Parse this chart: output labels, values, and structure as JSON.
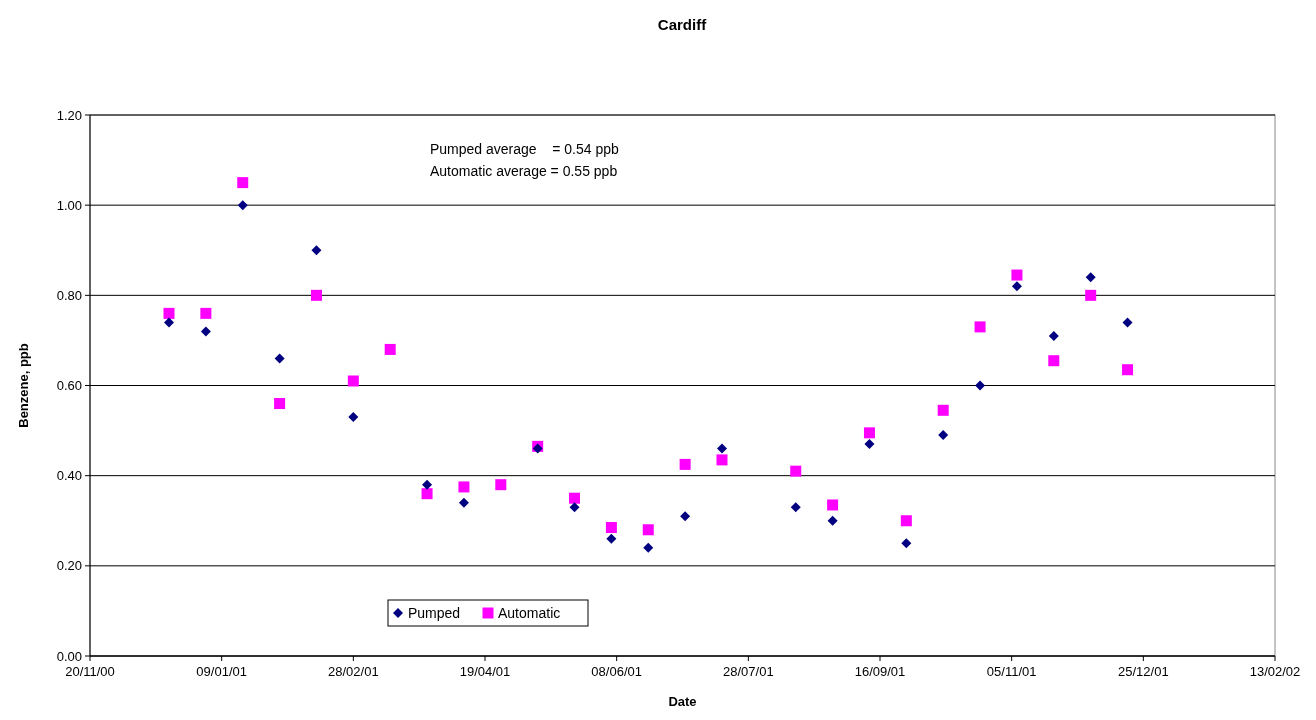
{
  "chart_data": {
    "type": "scatter",
    "title": "Cardiff",
    "xlabel": "Date",
    "ylabel": "Benzene, ppb",
    "annotations": [
      "Pumped average    = 0.54 ppb",
      "Automatic average = 0.55 ppb"
    ],
    "x": [
      "2000-12-20",
      "2001-01-03",
      "2001-01-17",
      "2001-01-31",
      "2001-02-14",
      "2001-02-28",
      "2001-03-14",
      "2001-03-28",
      "2001-04-11",
      "2001-04-25",
      "2001-05-09",
      "2001-05-23",
      "2001-06-06",
      "2001-06-20",
      "2001-07-04",
      "2001-07-18",
      "2001-08-15",
      "2001-08-29",
      "2001-09-12",
      "2001-09-26",
      "2001-10-10",
      "2001-10-24",
      "2001-11-07",
      "2001-11-21",
      "2001-12-05",
      "2001-12-19"
    ],
    "series": [
      {
        "name": "Pumped",
        "color": "#000080",
        "marker": "diamond",
        "values": [
          0.74,
          0.72,
          1.0,
          0.66,
          0.9,
          0.53,
          null,
          0.38,
          0.34,
          null,
          0.46,
          0.33,
          0.26,
          0.24,
          0.31,
          0.46,
          0.33,
          0.3,
          0.47,
          0.25,
          0.49,
          0.6,
          0.82,
          0.71,
          0.84,
          0.74
        ]
      },
      {
        "name": "Automatic",
        "color": "#ff00ff",
        "marker": "square",
        "values": [
          0.76,
          0.76,
          1.05,
          0.56,
          0.8,
          0.61,
          0.68,
          0.36,
          0.375,
          0.38,
          0.465,
          0.35,
          0.285,
          0.28,
          0.425,
          0.435,
          0.41,
          0.335,
          0.495,
          0.3,
          0.545,
          0.73,
          0.845,
          0.655,
          0.8,
          0.635
        ]
      }
    ],
    "xlim": [
      "2000-11-20",
      "2002-02-13"
    ],
    "xticks": [
      {
        "value": "2000-11-20",
        "label": "20/11/00"
      },
      {
        "value": "2001-01-09",
        "label": "09/01/01"
      },
      {
        "value": "2001-02-28",
        "label": "28/02/01"
      },
      {
        "value": "2001-04-19",
        "label": "19/04/01"
      },
      {
        "value": "2001-06-08",
        "label": "08/06/01"
      },
      {
        "value": "2001-07-28",
        "label": "28/07/01"
      },
      {
        "value": "2001-09-16",
        "label": "16/09/01"
      },
      {
        "value": "2001-11-05",
        "label": "05/11/01"
      },
      {
        "value": "2001-12-25",
        "label": "25/12/01"
      },
      {
        "value": "2002-02-13",
        "label": "13/02/02"
      }
    ],
    "ylim": [
      0,
      1.2
    ],
    "yticks": [
      {
        "value": 0,
        "label": "0.00"
      },
      {
        "value": 0.2,
        "label": "0.20"
      },
      {
        "value": 0.4,
        "label": "0.40"
      },
      {
        "value": 0.6,
        "label": "0.60"
      },
      {
        "value": 0.8,
        "label": "0.80"
      },
      {
        "value": 1,
        "label": "1.00"
      },
      {
        "value": 1.2,
        "label": "1.20"
      }
    ],
    "grid": "y",
    "legend": "bottom left"
  }
}
